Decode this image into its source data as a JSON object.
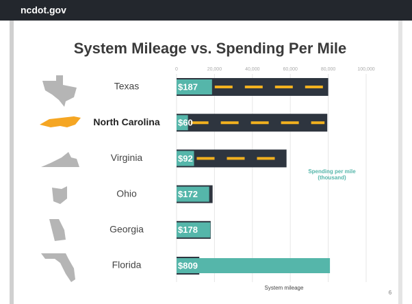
{
  "header": "ncdot.gov",
  "page_number": "6",
  "chart_data": {
    "type": "hbar",
    "title": "System Mileage vs. Spending Per Mile",
    "categories": [
      "Texas",
      "North Carolina",
      "Virginia",
      "Ohio",
      "Georgia",
      "Florida"
    ],
    "highlight": 1,
    "series": [
      {
        "name": "System mileage",
        "color": "#2e353f",
        "values": [
          80000,
          79500,
          58000,
          19000,
          18000,
          12000
        ]
      },
      {
        "name": "Spending per mile (thousand)",
        "color": "#55b6aa",
        "axis": "x2",
        "values": [
          187,
          60,
          92,
          172,
          178,
          809
        ],
        "value_labels": [
          "$187",
          "$60",
          "$92",
          "$172",
          "$178",
          "$809"
        ]
      }
    ],
    "xlim": [
      0,
      100000
    ],
    "xticks": [
      0,
      {
        "value": 20000,
        "label": "20,000"
      },
      {
        "value": 40000,
        "label": "40,000"
      },
      {
        "value": 60000,
        "label": "60,000"
      },
      {
        "value": 80000,
        "label": "80,000"
      },
      {
        "value": 100000,
        "label": "100,000"
      }
    ],
    "x2lim": [
      0,
      1000
    ],
    "grid": true
  }
}
